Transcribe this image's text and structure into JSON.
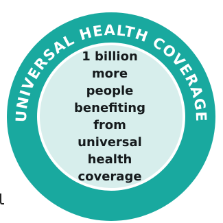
{
  "badge": {
    "ring_text": "UNIVERSAL HEALTH COVERAGE",
    "center_text": "1 billion\nmore people\nbenefiting\nfrom universal\nhealth\ncoverage",
    "colors": {
      "ring": "#19a99f",
      "inner_fill": "#d7eeec",
      "inner_border": "#ffffff",
      "ring_text": "#ffffff",
      "center_text": "#151a1c"
    }
  }
}
